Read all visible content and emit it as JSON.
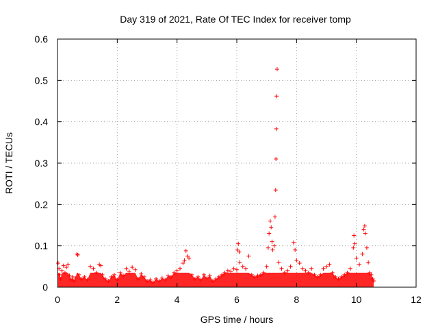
{
  "chart_data": {
    "type": "scatter",
    "title": "Day 319 of 2021, Rate Of TEC Index for receiver tomp",
    "xlabel": "GPS time / hours",
    "ylabel": "ROTI / TECUs",
    "xlim": [
      0,
      12
    ],
    "ylim": [
      0,
      0.6
    ],
    "grid": true,
    "marker": "+",
    "x_ticks": [
      0,
      2,
      4,
      6,
      8,
      10,
      12
    ],
    "x_tick_labels": [
      "0",
      "2",
      "4",
      "6",
      "8",
      "10",
      "12"
    ],
    "y_ticks": [
      0,
      0.1,
      0.2,
      0.3,
      0.4,
      0.5,
      0.6
    ],
    "y_tick_labels": [
      "0",
      "0.1",
      "0.2",
      "0.3",
      "0.4",
      "0.5",
      "0.6"
    ],
    "series": [
      {
        "name": "ROTI",
        "color": "#ff0000",
        "points": [
          [
            0.02,
            0.058
          ],
          [
            0.05,
            0.045
          ],
          [
            0.08,
            0.03
          ],
          [
            0.1,
            0.02
          ],
          [
            0.15,
            0.04
          ],
          [
            0.2,
            0.052
          ],
          [
            0.25,
            0.035
          ],
          [
            0.3,
            0.048
          ],
          [
            0.35,
            0.055
          ],
          [
            0.4,
            0.028
          ],
          [
            0.45,
            0.018
          ],
          [
            0.5,
            0.025
          ],
          [
            0.55,
            0.015
          ],
          [
            0.6,
            0.022
          ],
          [
            0.65,
            0.08
          ],
          [
            0.68,
            0.078
          ],
          [
            0.72,
            0.03
          ],
          [
            0.8,
            0.02
          ],
          [
            0.9,
            0.025
          ],
          [
            1.0,
            0.018
          ],
          [
            1.1,
            0.05
          ],
          [
            1.2,
            0.045
          ],
          [
            1.3,
            0.035
          ],
          [
            1.4,
            0.055
          ],
          [
            1.45,
            0.052
          ],
          [
            1.5,
            0.03
          ],
          [
            1.6,
            0.02
          ],
          [
            1.7,
            0.015
          ],
          [
            1.8,
            0.025
          ],
          [
            1.9,
            0.03
          ],
          [
            2.0,
            0.018
          ],
          [
            2.1,
            0.035
          ],
          [
            2.2,
            0.028
          ],
          [
            2.3,
            0.045
          ],
          [
            2.4,
            0.038
          ],
          [
            2.5,
            0.048
          ],
          [
            2.6,
            0.042
          ],
          [
            2.7,
            0.02
          ],
          [
            2.8,
            0.032
          ],
          [
            2.9,
            0.025
          ],
          [
            3.0,
            0.015
          ],
          [
            3.1,
            0.018
          ],
          [
            3.2,
            0.012
          ],
          [
            3.3,
            0.02
          ],
          [
            3.4,
            0.015
          ],
          [
            3.5,
            0.022
          ],
          [
            3.6,
            0.018
          ],
          [
            3.7,
            0.028
          ],
          [
            3.8,
            0.025
          ],
          [
            3.9,
            0.035
          ],
          [
            4.0,
            0.04
          ],
          [
            4.1,
            0.045
          ],
          [
            4.2,
            0.058
          ],
          [
            4.25,
            0.065
          ],
          [
            4.3,
            0.088
          ],
          [
            4.35,
            0.075
          ],
          [
            4.4,
            0.07
          ],
          [
            4.5,
            0.03
          ],
          [
            4.6,
            0.02
          ],
          [
            4.7,
            0.025
          ],
          [
            4.8,
            0.018
          ],
          [
            4.9,
            0.03
          ],
          [
            5.0,
            0.022
          ],
          [
            5.1,
            0.028
          ],
          [
            5.2,
            0.015
          ],
          [
            5.3,
            0.02
          ],
          [
            5.4,
            0.025
          ],
          [
            5.5,
            0.03
          ],
          [
            5.6,
            0.035
          ],
          [
            5.7,
            0.04
          ],
          [
            5.8,
            0.038
          ],
          [
            5.9,
            0.045
          ],
          [
            6.0,
            0.042
          ],
          [
            6.02,
            0.09
          ],
          [
            6.05,
            0.105
          ],
          [
            6.08,
            0.085
          ],
          [
            6.1,
            0.06
          ],
          [
            6.2,
            0.05
          ],
          [
            6.3,
            0.045
          ],
          [
            6.4,
            0.075
          ],
          [
            6.5,
            0.03
          ],
          [
            6.6,
            0.025
          ],
          [
            6.7,
            0.028
          ],
          [
            6.8,
            0.03
          ],
          [
            6.9,
            0.035
          ],
          [
            7.0,
            0.05
          ],
          [
            7.05,
            0.095
          ],
          [
            7.08,
            0.13
          ],
          [
            7.12,
            0.16
          ],
          [
            7.15,
            0.145
          ],
          [
            7.18,
            0.11
          ],
          [
            7.2,
            0.09
          ],
          [
            7.25,
            0.1
          ],
          [
            7.28,
            0.17
          ],
          [
            7.3,
            0.235
          ],
          [
            7.31,
            0.31
          ],
          [
            7.32,
            0.383
          ],
          [
            7.33,
            0.462
          ],
          [
            7.35,
            0.527
          ],
          [
            7.4,
            0.06
          ],
          [
            7.5,
            0.045
          ],
          [
            7.6,
            0.035
          ],
          [
            7.7,
            0.04
          ],
          [
            7.8,
            0.05
          ],
          [
            7.9,
            0.108
          ],
          [
            7.95,
            0.09
          ],
          [
            8.0,
            0.065
          ],
          [
            8.1,
            0.058
          ],
          [
            8.2,
            0.045
          ],
          [
            8.3,
            0.04
          ],
          [
            8.4,
            0.035
          ],
          [
            8.5,
            0.045
          ],
          [
            8.6,
            0.03
          ],
          [
            8.7,
            0.025
          ],
          [
            8.8,
            0.03
          ],
          [
            8.9,
            0.045
          ],
          [
            9.0,
            0.05
          ],
          [
            9.1,
            0.055
          ],
          [
            9.2,
            0.035
          ],
          [
            9.3,
            0.025
          ],
          [
            9.4,
            0.02
          ],
          [
            9.5,
            0.025
          ],
          [
            9.6,
            0.03
          ],
          [
            9.7,
            0.035
          ],
          [
            9.8,
            0.045
          ],
          [
            9.9,
            0.095
          ],
          [
            9.92,
            0.125
          ],
          [
            9.95,
            0.105
          ],
          [
            10.0,
            0.07
          ],
          [
            10.1,
            0.055
          ],
          [
            10.2,
            0.08
          ],
          [
            10.25,
            0.14
          ],
          [
            10.28,
            0.148
          ],
          [
            10.3,
            0.13
          ],
          [
            10.35,
            0.095
          ],
          [
            10.4,
            0.06
          ],
          [
            10.45,
            0.035
          ],
          [
            10.5,
            0.03
          ],
          [
            10.55,
            0.02
          ],
          [
            10.58,
            0.015
          ]
        ]
      }
    ]
  }
}
